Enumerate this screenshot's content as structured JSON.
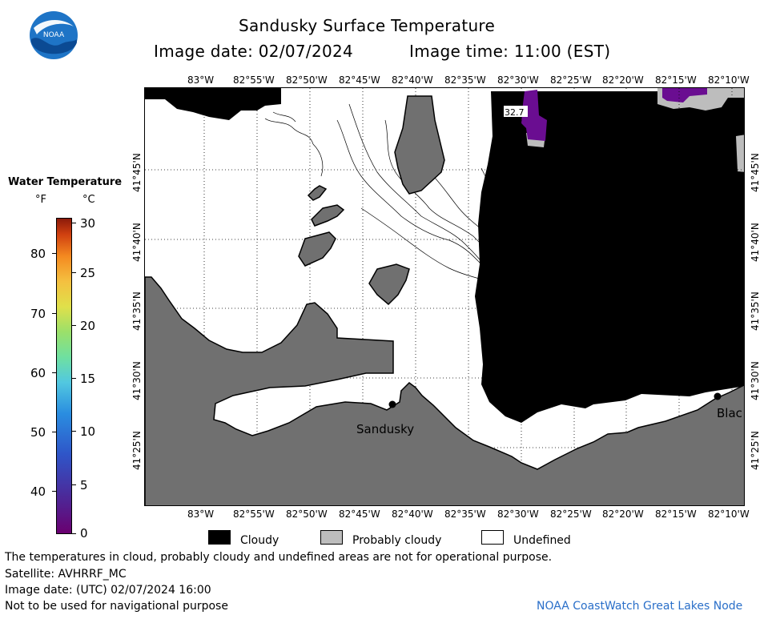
{
  "header": {
    "title": "Sandusky Surface Temperature",
    "image_date": "Image date: 02/07/2024",
    "image_time": "Image time: 11:00 (EST)",
    "logo_text": "NOAA"
  },
  "axes": {
    "lon_labels": [
      "83°W",
      "82°55'W",
      "82°50'W",
      "82°45'W",
      "82°40'W",
      "82°35'W",
      "82°30'W",
      "82°25'W",
      "82°20'W",
      "82°15'W",
      "82°10'W"
    ],
    "lat_labels": [
      "41°45'N",
      "41°40'N",
      "41°35'N",
      "41°30'N",
      "41°25'N"
    ]
  },
  "map": {
    "temperature_label": "32.7",
    "places": [
      "Sandusky",
      "Blac"
    ],
    "colors": {
      "land": "#707070",
      "cloudy": "#000000",
      "probably_cloudy": "#bdbdbd",
      "undefined": "#ffffff",
      "warm_pixel": "#6a0d91"
    }
  },
  "colorbar": {
    "title": "Water Temperature",
    "unit_f": "°F",
    "unit_c": "°C",
    "f_ticks": [
      "80",
      "70",
      "60",
      "50",
      "40"
    ],
    "c_ticks": [
      "30",
      "25",
      "20",
      "15",
      "10",
      "5",
      "0"
    ]
  },
  "legend": {
    "cloudy": "Cloudy",
    "probably_cloudy": "Probably cloudy",
    "undefined": "Undefined"
  },
  "footer": {
    "disclaimer": "The temperatures in cloud, probably cloudy and undefined areas are not for operational purpose.",
    "satellite": "Satellite: AVHRRF_MC",
    "utc_date": "Image date: (UTC) 02/07/2024  16:00",
    "nav_warning": "Not to be used for navigational purpose",
    "credit": "NOAA CoastWatch Great Lakes Node"
  }
}
